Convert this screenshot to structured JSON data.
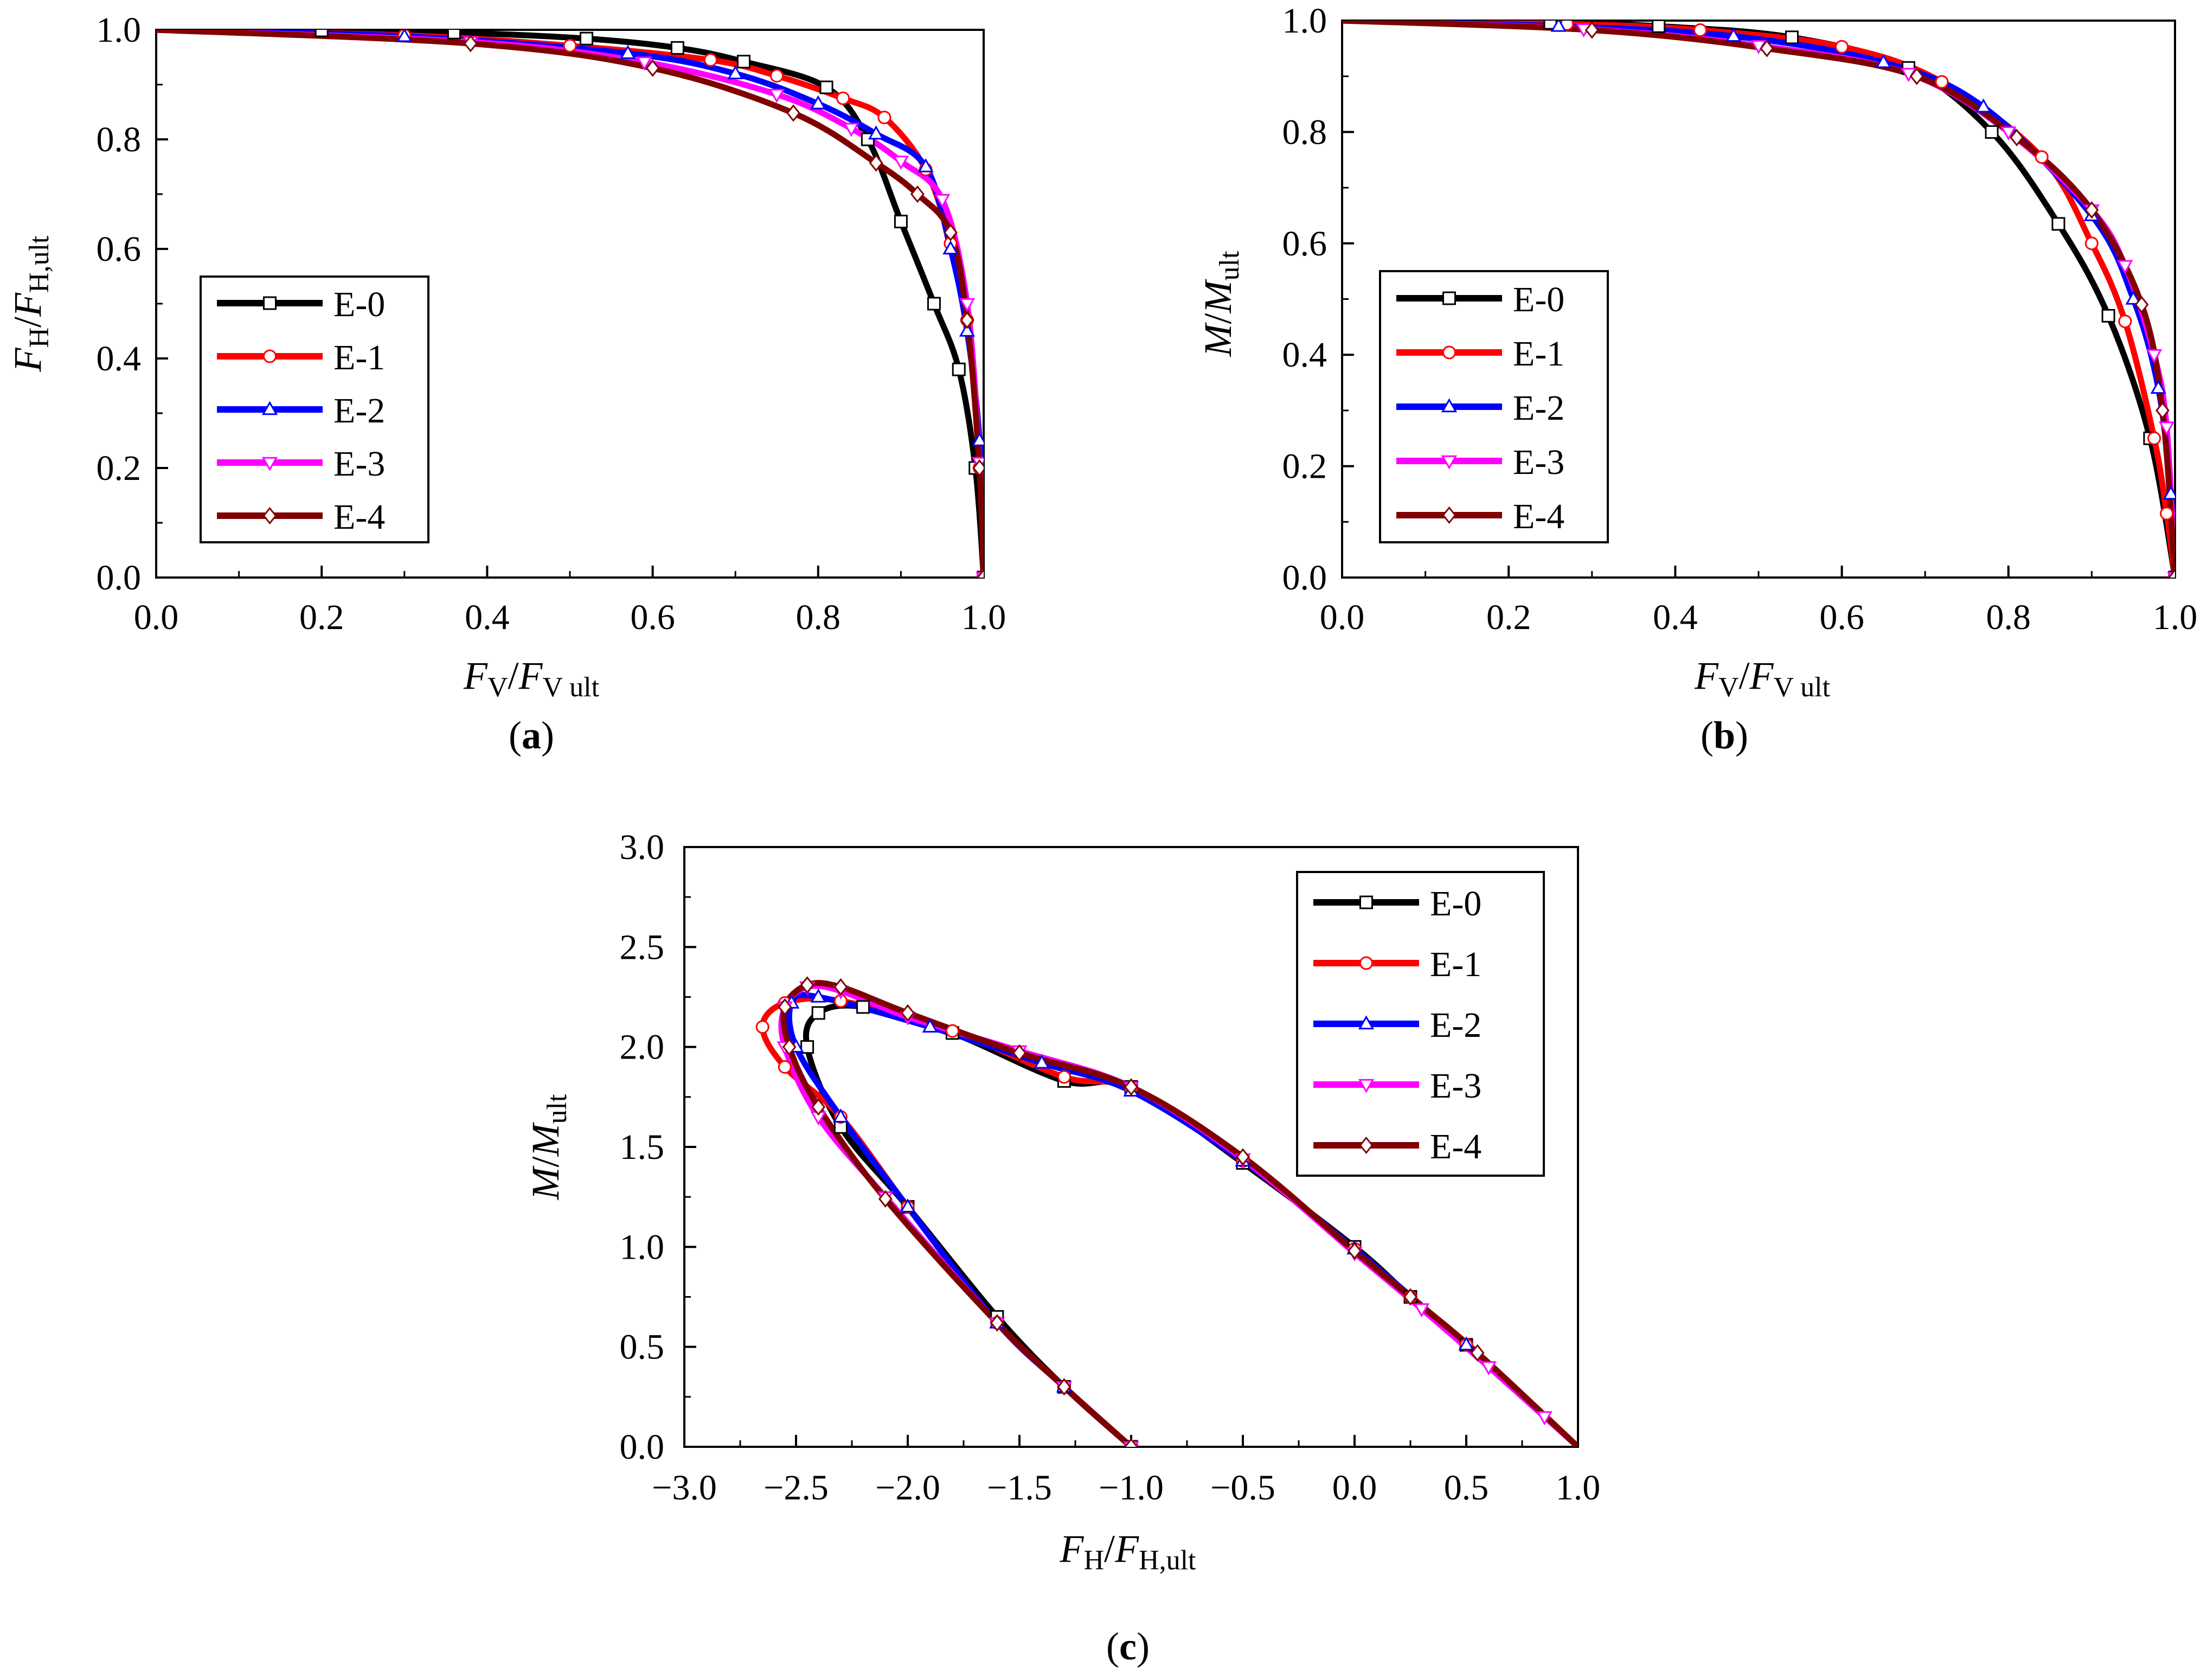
{
  "colors": {
    "E-0": "#000000",
    "E-1": "#ff0000",
    "E-2": "#0000ff",
    "E-3": "#ff00ff",
    "E-4": "#800000"
  },
  "chart_data": [
    {
      "id": "a",
      "type": "line",
      "panel_label": "a",
      "xlabel": {
        "main": "F",
        "sub": "V",
        "sep": "/",
        "main2": "F",
        "sub2": "V ult"
      },
      "ylabel": {
        "main": "F",
        "sub": "H",
        "sep": "/",
        "main2": "F",
        "sub2": "H,ult"
      },
      "xlim": [
        0,
        1
      ],
      "ylim": [
        0,
        1
      ],
      "xticks": [
        "0.0",
        "0.2",
        "0.4",
        "0.6",
        "0.8",
        "1.0"
      ],
      "yticks": [
        "0.0",
        "0.2",
        "0.4",
        "0.6",
        "0.8",
        "1.0"
      ],
      "legend_position": "center-left",
      "series": [
        {
          "name": "E-0",
          "marker": "square",
          "points": [
            [
              0,
              1
            ],
            [
              0.2,
              0.999
            ],
            [
              0.36,
              0.995
            ],
            [
              0.52,
              0.984
            ],
            [
              0.63,
              0.967
            ],
            [
              0.71,
              0.942
            ],
            [
              0.81,
              0.895
            ],
            [
              0.86,
              0.8
            ],
            [
              0.9,
              0.65
            ],
            [
              0.94,
              0.5
            ],
            [
              0.97,
              0.38
            ],
            [
              0.99,
              0.2
            ],
            [
              1,
              0
            ]
          ]
        },
        {
          "name": "E-1",
          "marker": "circle",
          "points": [
            [
              0,
              1
            ],
            [
              0.3,
              0.99
            ],
            [
              0.5,
              0.971
            ],
            [
              0.67,
              0.945
            ],
            [
              0.75,
              0.916
            ],
            [
              0.83,
              0.875
            ],
            [
              0.88,
              0.84
            ],
            [
              0.93,
              0.745
            ],
            [
              0.96,
              0.61
            ],
            [
              0.98,
              0.47
            ],
            [
              0.995,
              0.2
            ],
            [
              1,
              0
            ]
          ]
        },
        {
          "name": "E-2",
          "marker": "triangle-up",
          "points": [
            [
              0,
              1
            ],
            [
              0.3,
              0.988
            ],
            [
              0.57,
              0.957
            ],
            [
              0.7,
              0.92
            ],
            [
              0.8,
              0.865
            ],
            [
              0.87,
              0.81
            ],
            [
              0.93,
              0.75
            ],
            [
              0.96,
              0.6
            ],
            [
              0.98,
              0.45
            ],
            [
              0.995,
              0.25
            ],
            [
              1,
              0
            ]
          ]
        },
        {
          "name": "E-3",
          "marker": "triangle-down",
          "points": [
            [
              0,
              1
            ],
            [
              0.38,
              0.978
            ],
            [
              0.59,
              0.941
            ],
            [
              0.75,
              0.882
            ],
            [
              0.84,
              0.82
            ],
            [
              0.9,
              0.76
            ],
            [
              0.95,
              0.69
            ],
            [
              0.98,
              0.5
            ],
            [
              0.995,
              0.21
            ],
            [
              1,
              0
            ]
          ]
        },
        {
          "name": "E-4",
          "marker": "diamond",
          "points": [
            [
              0,
              1
            ],
            [
              0.38,
              0.975
            ],
            [
              0.6,
              0.93
            ],
            [
              0.77,
              0.848
            ],
            [
              0.87,
              0.757
            ],
            [
              0.92,
              0.7
            ],
            [
              0.96,
              0.63
            ],
            [
              0.98,
              0.47
            ],
            [
              0.995,
              0.2
            ],
            [
              1,
              0
            ]
          ]
        }
      ]
    },
    {
      "id": "b",
      "type": "line",
      "panel_label": "b",
      "xlabel": {
        "main": "F",
        "sub": "V",
        "sep": "/",
        "main2": "F",
        "sub2": "V ult"
      },
      "ylabel": {
        "main": "M",
        "sub": "",
        "sep": "/",
        "main2": "M",
        "sub2": "ult"
      },
      "xlim": [
        0,
        1
      ],
      "ylim": [
        0,
        1
      ],
      "xticks": [
        "0.0",
        "0.2",
        "0.4",
        "0.6",
        "0.8",
        "1.0"
      ],
      "yticks": [
        "0.0",
        "0.2",
        "0.4",
        "0.6",
        "0.8",
        "1.0"
      ],
      "legend_position": "center-left",
      "series": [
        {
          "name": "E-0",
          "marker": "square",
          "points": [
            [
              0,
              1
            ],
            [
              0.25,
              0.996
            ],
            [
              0.38,
              0.99
            ],
            [
              0.54,
              0.97
            ],
            [
              0.68,
              0.915
            ],
            [
              0.78,
              0.8
            ],
            [
              0.86,
              0.635
            ],
            [
              0.92,
              0.47
            ],
            [
              0.97,
              0.25
            ],
            [
              1,
              0
            ]
          ]
        },
        {
          "name": "E-1",
          "marker": "circle",
          "points": [
            [
              0,
              1
            ],
            [
              0.27,
              0.994
            ],
            [
              0.43,
              0.983
            ],
            [
              0.6,
              0.953
            ],
            [
              0.72,
              0.89
            ],
            [
              0.84,
              0.755
            ],
            [
              0.9,
              0.6
            ],
            [
              0.94,
              0.46
            ],
            [
              0.975,
              0.25
            ],
            [
              0.99,
              0.115
            ],
            [
              1,
              0
            ]
          ]
        },
        {
          "name": "E-2",
          "marker": "triangle-up",
          "points": [
            [
              0,
              1
            ],
            [
              0.26,
              0.99
            ],
            [
              0.47,
              0.972
            ],
            [
              0.65,
              0.925
            ],
            [
              0.77,
              0.845
            ],
            [
              0.9,
              0.65
            ],
            [
              0.95,
              0.5
            ],
            [
              0.98,
              0.34
            ],
            [
              0.995,
              0.15
            ],
            [
              1,
              0
            ]
          ]
        },
        {
          "name": "E-3",
          "marker": "triangle-down",
          "points": [
            [
              0,
              1
            ],
            [
              0.29,
              0.985
            ],
            [
              0.5,
              0.955
            ],
            [
              0.68,
              0.905
            ],
            [
              0.8,
              0.8
            ],
            [
              0.9,
              0.66
            ],
            [
              0.94,
              0.56
            ],
            [
              0.975,
              0.4
            ],
            [
              0.99,
              0.27
            ],
            [
              1,
              0
            ]
          ]
        },
        {
          "name": "E-4",
          "marker": "diamond",
          "points": [
            [
              0,
              1
            ],
            [
              0.3,
              0.983
            ],
            [
              0.51,
              0.95
            ],
            [
              0.69,
              0.9
            ],
            [
              0.81,
              0.79
            ],
            [
              0.9,
              0.66
            ],
            [
              0.96,
              0.49
            ],
            [
              0.985,
              0.3
            ],
            [
              1,
              0
            ]
          ]
        }
      ]
    },
    {
      "id": "c",
      "type": "line",
      "panel_label": "c",
      "xlabel": {
        "main": "F",
        "sub": "H",
        "sep": "/",
        "main2": "F",
        "sub2": "H,ult"
      },
      "ylabel": {
        "main": "M",
        "sub": "",
        "sep": "/",
        "main2": "M",
        "sub2": "ult"
      },
      "xlim": [
        -3,
        1
      ],
      "ylim": [
        0,
        3
      ],
      "xticks": [
        "−3.0",
        "−2.5",
        "−2.0",
        "−1.5",
        "−1.0",
        "−0.5",
        "0.0",
        "0.5",
        "1.0"
      ],
      "yticks": [
        "0.0",
        "0.5",
        "1.0",
        "1.5",
        "2.0",
        "2.5",
        "3.0"
      ],
      "legend_position": "top-right",
      "series": [
        {
          "name": "E-0",
          "marker": "square",
          "points": [
            [
              1,
              0
            ],
            [
              0.5,
              0.51
            ],
            [
              0.25,
              0.75
            ],
            [
              0,
              1
            ],
            [
              -0.5,
              1.42
            ],
            [
              -1,
              1.8
            ],
            [
              -1.3,
              1.83
            ],
            [
              -1.8,
              2.07
            ],
            [
              -2.2,
              2.2
            ],
            [
              -2.4,
              2.17
            ],
            [
              -2.45,
              2.0
            ],
            [
              -2.3,
              1.6
            ],
            [
              -2,
              1.2
            ],
            [
              -1.6,
              0.65
            ],
            [
              -1.3,
              0.3
            ],
            [
              -1,
              0
            ]
          ]
        },
        {
          "name": "E-1",
          "marker": "circle",
          "points": [
            [
              1,
              0
            ],
            [
              0.5,
              0.51
            ],
            [
              0.25,
              0.75
            ],
            [
              0,
              0.99
            ],
            [
              -0.5,
              1.43
            ],
            [
              -1,
              1.79
            ],
            [
              -1.3,
              1.85
            ],
            [
              -1.8,
              2.08
            ],
            [
              -2.3,
              2.23
            ],
            [
              -2.55,
              2.22
            ],
            [
              -2.65,
              2.1
            ],
            [
              -2.55,
              1.9
            ],
            [
              -2.3,
              1.65
            ],
            [
              -2.0,
              1.2
            ],
            [
              -1.6,
              0.62
            ],
            [
              -1.3,
              0.3
            ],
            [
              -1,
              0
            ]
          ]
        },
        {
          "name": "E-2",
          "marker": "triangle-up",
          "points": [
            [
              1,
              0
            ],
            [
              0.5,
              0.51
            ],
            [
              0,
              0.99
            ],
            [
              -0.5,
              1.43
            ],
            [
              -1,
              1.78
            ],
            [
              -1.4,
              1.92
            ],
            [
              -1.9,
              2.1
            ],
            [
              -2.4,
              2.25
            ],
            [
              -2.52,
              2.22
            ],
            [
              -2.5,
              2.0
            ],
            [
              -2.3,
              1.65
            ],
            [
              -2.0,
              1.2
            ],
            [
              -1.6,
              0.62
            ],
            [
              -1.3,
              0.3
            ],
            [
              -1,
              0
            ]
          ]
        },
        {
          "name": "E-3",
          "marker": "triangle-down",
          "points": [
            [
              1,
              0
            ],
            [
              0.85,
              0.15
            ],
            [
              0.6,
              0.4
            ],
            [
              0.3,
              0.69
            ],
            [
              0,
              0.97
            ],
            [
              -0.5,
              1.44
            ],
            [
              -1,
              1.8
            ],
            [
              -1.5,
              1.98
            ],
            [
              -2.0,
              2.15
            ],
            [
              -2.3,
              2.28
            ],
            [
              -2.45,
              2.3
            ],
            [
              -2.55,
              2.2
            ],
            [
              -2.55,
              2.0
            ],
            [
              -2.4,
              1.65
            ],
            [
              -2.1,
              1.25
            ],
            [
              -1.6,
              0.62
            ],
            [
              -1.3,
              0.3
            ],
            [
              -1,
              0
            ]
          ]
        },
        {
          "name": "E-4",
          "marker": "diamond",
          "points": [
            [
              1,
              0
            ],
            [
              0.55,
              0.47
            ],
            [
              0.25,
              0.75
            ],
            [
              0,
              0.98
            ],
            [
              -0.5,
              1.45
            ],
            [
              -1,
              1.8
            ],
            [
              -1.5,
              1.97
            ],
            [
              -2.0,
              2.17
            ],
            [
              -2.3,
              2.3
            ],
            [
              -2.45,
              2.31
            ],
            [
              -2.55,
              2.2
            ],
            [
              -2.53,
              2.0
            ],
            [
              -2.4,
              1.7
            ],
            [
              -2.1,
              1.24
            ],
            [
              -1.6,
              0.62
            ],
            [
              -1.3,
              0.3
            ],
            [
              -1,
              0
            ]
          ]
        }
      ]
    }
  ]
}
